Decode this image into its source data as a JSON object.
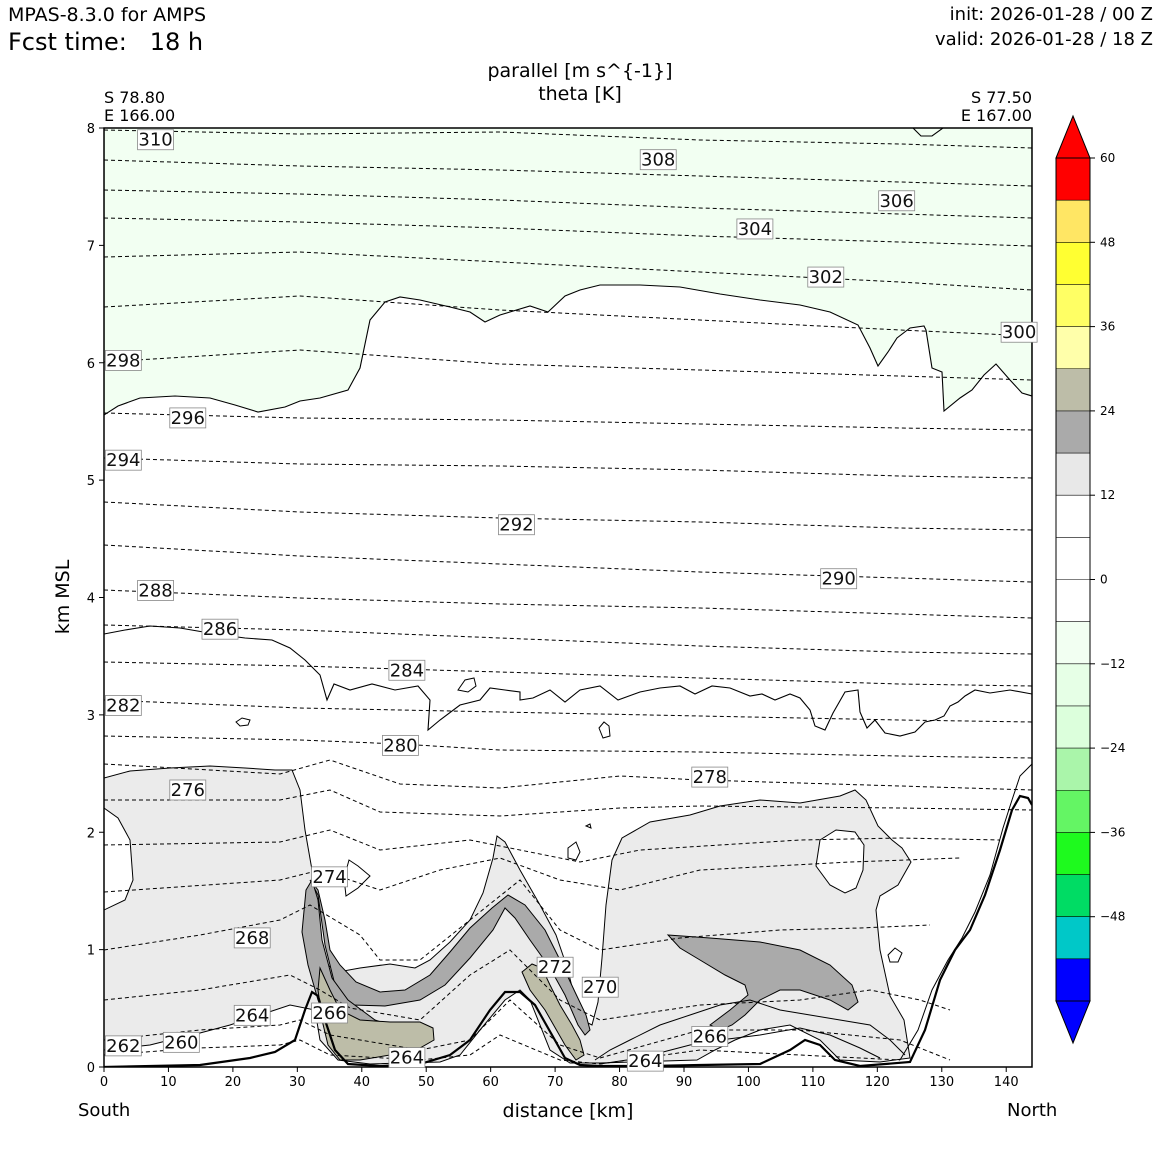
{
  "header": {
    "model": "MPAS-8.3.0 for AMPS",
    "fcst_label": "Fcst time:   18 h",
    "init": "init: 2026-01-28 / 00 Z",
    "valid": "valid: 2026-01-28 / 18 Z"
  },
  "chart_data": {
    "type": "cross-section contour",
    "title": [
      "parallel [m s^{-1}]",
      "theta [K]"
    ],
    "xlabel": "distance [km]",
    "ylabel": "km MSL",
    "xlim": [
      0,
      144
    ],
    "ylim": [
      0,
      8
    ],
    "x_ticks": [
      "0",
      "10",
      "20",
      "30",
      "40",
      "50",
      "60",
      "70",
      "80",
      "90",
      "100",
      "110",
      "120",
      "130",
      "140"
    ],
    "y_ticks": [
      "0",
      "1",
      "2",
      "3",
      "4",
      "5",
      "6",
      "7",
      "8"
    ],
    "start_point": {
      "lat": "S 78.80",
      "lon": "E 166.00"
    },
    "end_point": {
      "lat": "S 77.50",
      "lon": "E 167.00"
    },
    "direction_labels": {
      "left": "South",
      "right": "North"
    },
    "theta_contour_labels": [
      {
        "text": "310",
        "x": 8,
        "y": 7.9
      },
      {
        "text": "308",
        "x": 86,
        "y": 7.73
      },
      {
        "text": "306",
        "x": 123,
        "y": 7.38
      },
      {
        "text": "304",
        "x": 101,
        "y": 7.14
      },
      {
        "text": "302",
        "x": 112,
        "y": 6.73
      },
      {
        "text": "300",
        "x": 142,
        "y": 6.26
      },
      {
        "text": "298",
        "x": 3,
        "y": 6.02
      },
      {
        "text": "296",
        "x": 13,
        "y": 5.53
      },
      {
        "text": "294",
        "x": 3,
        "y": 5.17
      },
      {
        "text": "292",
        "x": 64,
        "y": 4.62
      },
      {
        "text": "290",
        "x": 114,
        "y": 4.16
      },
      {
        "text": "288",
        "x": 8,
        "y": 4.06
      },
      {
        "text": "286",
        "x": 18,
        "y": 3.73
      },
      {
        "text": "284",
        "x": 47,
        "y": 3.38
      },
      {
        "text": "282",
        "x": 3,
        "y": 3.08
      },
      {
        "text": "280",
        "x": 46,
        "y": 2.74
      },
      {
        "text": "278",
        "x": 94,
        "y": 2.47
      },
      {
        "text": "276",
        "x": 13,
        "y": 2.36
      },
      {
        "text": "274",
        "x": 35,
        "y": 1.62
      },
      {
        "text": "272",
        "x": 70,
        "y": 0.85
      },
      {
        "text": "270",
        "x": 77,
        "y": 0.68
      },
      {
        "text": "268",
        "x": 23,
        "y": 1.1
      },
      {
        "text": "266",
        "x": 35,
        "y": 0.46
      },
      {
        "text": "266",
        "x": 94,
        "y": 0.26
      },
      {
        "text": "264",
        "x": 23,
        "y": 0.44
      },
      {
        "text": "264",
        "x": 47,
        "y": 0.08
      },
      {
        "text": "264",
        "x": 84,
        "y": 0.05
      },
      {
        "text": "262",
        "x": 3,
        "y": 0.18
      },
      {
        "text": "260",
        "x": 12,
        "y": 0.21
      }
    ],
    "colorbar": {
      "variable": "parallel wind [m s^-1]",
      "tick_labels": [
        "60",
        "48",
        "36",
        "24",
        "12",
        "0",
        "−12",
        "−24",
        "−36",
        "−48"
      ],
      "bins": [
        {
          "from": -60,
          "to": -54,
          "color": "#0000ff"
        },
        {
          "from": -54,
          "to": -48,
          "color": "#00c8c8"
        },
        {
          "from": -48,
          "to": -42,
          "color": "#00dc64"
        },
        {
          "from": -42,
          "to": -36,
          "color": "#1efa1e"
        },
        {
          "from": -36,
          "to": -30,
          "color": "#64f564"
        },
        {
          "from": -30,
          "to": -24,
          "color": "#aaf5aa"
        },
        {
          "from": -24,
          "to": -18,
          "color": "#dcffdc"
        },
        {
          "from": -18,
          "to": -12,
          "color": "#e6ffe6"
        },
        {
          "from": -12,
          "to": -6,
          "color": "#f2fff2"
        },
        {
          "from": -6,
          "to": 0,
          "color": "#ffffff"
        },
        {
          "from": 0,
          "to": 6,
          "color": "#ffffff"
        },
        {
          "from": 6,
          "to": 12,
          "color": "#ffffff"
        },
        {
          "from": 12,
          "to": 18,
          "color": "#e8e8e8"
        },
        {
          "from": 18,
          "to": 24,
          "color": "#aaaaaa"
        },
        {
          "from": 24,
          "to": 30,
          "color": "#bdbda8"
        },
        {
          "from": 30,
          "to": 36,
          "color": "#ffffaa"
        },
        {
          "from": 36,
          "to": 42,
          "color": "#ffff64"
        },
        {
          "from": 42,
          "to": 48,
          "color": "#ffff32"
        },
        {
          "from": 48,
          "to": 54,
          "color": "#ffe664"
        },
        {
          "from": 54,
          "to": 60,
          "color": "#ff6e6e"
        }
      ],
      "extend_low_color": "#0000ff",
      "extend_high_color": "#ff0000",
      "top_bin_color": "#ff0000"
    },
    "shaded_regions": {
      "upper_negative_color": "#f2fff2",
      "positive_light_color": "#ebebeb",
      "positive_mid_color": "#aaaaaa",
      "positive_strong_color": "#bdbda8"
    }
  }
}
